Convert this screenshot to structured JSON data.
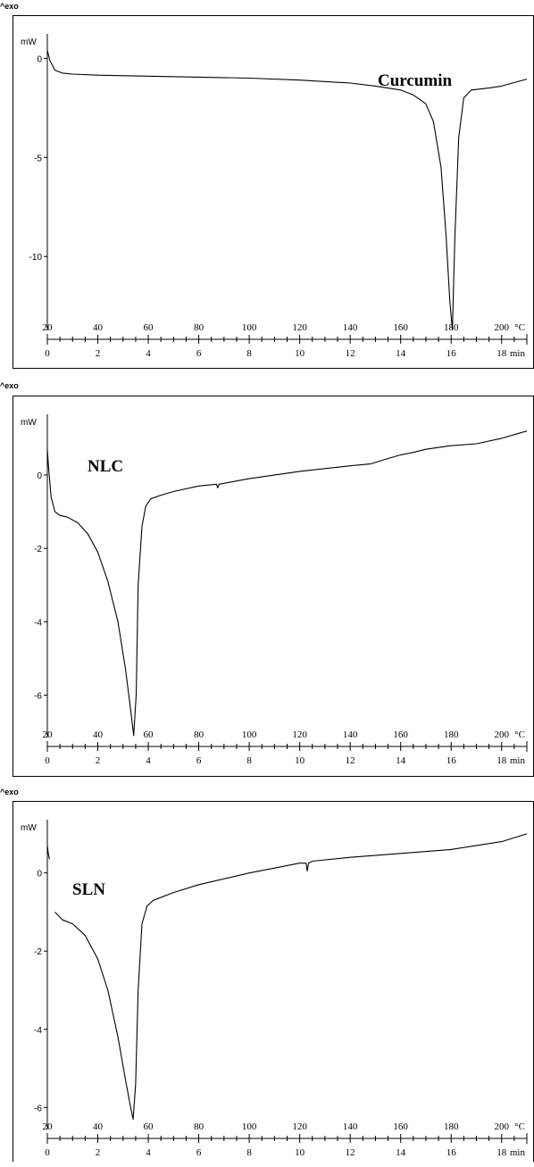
{
  "exo_label": "^exo",
  "chart_data": [
    {
      "type": "line",
      "title": "Curcumin",
      "ylabel": "mW",
      "temp_unit": "°C",
      "time_unit": "min",
      "yticks": [
        0,
        -5,
        -10
      ],
      "ylim": [
        -14,
        1.5
      ],
      "temp_ticks": [
        20,
        40,
        60,
        80,
        100,
        120,
        140,
        160,
        180,
        200
      ],
      "time_ticks": [
        0,
        2,
        4,
        6,
        8,
        10,
        12,
        14,
        16,
        18
      ],
      "xlim_min": [
        0,
        19
      ],
      "series": [
        {
          "x": [
            0,
            0.1,
            0.3,
            0.6,
            1,
            2,
            4,
            6,
            8,
            10,
            12,
            13,
            14,
            14.5,
            15,
            15.3,
            15.6,
            15.8,
            15.95,
            16.05,
            16.15,
            16.3,
            16.5,
            16.8,
            17.5,
            18,
            19
          ],
          "y": [
            0.4,
            -0.1,
            -0.6,
            -0.75,
            -0.8,
            -0.85,
            -0.9,
            -0.95,
            -1.0,
            -1.1,
            -1.25,
            -1.4,
            -1.6,
            -1.85,
            -2.3,
            -3.2,
            -5.5,
            -9.0,
            -12.3,
            -13.7,
            -9.0,
            -4.0,
            -2.0,
            -1.6,
            -1.5,
            -1.4,
            -1.05
          ]
        }
      ]
    },
    {
      "type": "line",
      "title": "NLC",
      "ylabel": "mW",
      "temp_unit": "°C",
      "time_unit": "min",
      "yticks": [
        0,
        -2,
        -4,
        -6
      ],
      "ylim": [
        -7.3,
        1.8
      ],
      "temp_ticks": [
        20,
        40,
        60,
        80,
        100,
        120,
        140,
        160,
        180,
        200
      ],
      "time_ticks": [
        0,
        2,
        4,
        6,
        8,
        10,
        12,
        14,
        16,
        18
      ],
      "xlim_min": [
        0,
        19
      ],
      "series": [
        {
          "x": [
            0,
            0.05,
            0.15,
            0.3,
            0.5,
            0.8,
            1.2,
            1.6,
            2.0,
            2.4,
            2.8,
            3.1,
            3.3,
            3.42,
            3.52,
            3.6,
            3.75,
            3.9,
            4.1,
            4.5,
            5,
            6,
            6.7,
            6.75,
            6.8,
            8,
            10,
            12,
            12.8,
            13.5,
            14,
            14.4,
            15,
            16,
            17,
            18,
            19
          ],
          "y": [
            0.7,
            0.2,
            -0.6,
            -1.0,
            -1.1,
            -1.15,
            -1.3,
            -1.6,
            -2.1,
            -2.9,
            -4.0,
            -5.3,
            -6.4,
            -7.1,
            -6.0,
            -3.0,
            -1.4,
            -0.85,
            -0.65,
            -0.55,
            -0.45,
            -0.3,
            -0.25,
            -0.35,
            -0.25,
            -0.1,
            0.1,
            0.25,
            0.3,
            0.45,
            0.55,
            0.6,
            0.7,
            0.8,
            0.85,
            1.0,
            1.2
          ]
        }
      ]
    },
    {
      "type": "line",
      "title": "SLN",
      "ylabel": "mW",
      "temp_unit": "°C",
      "time_unit": "min",
      "yticks": [
        0,
        -2,
        -4,
        -6
      ],
      "ylim": [
        -6.7,
        1.5
      ],
      "temp_ticks": [
        20,
        40,
        60,
        80,
        100,
        120,
        140,
        160,
        180,
        200
      ],
      "time_ticks": [
        0,
        2,
        4,
        6,
        8,
        10,
        12,
        14,
        16,
        18
      ],
      "xlim_min": [
        0,
        19
      ],
      "series": [
        {
          "x": [
            0,
            0.04,
            0.08
          ],
          "y": [
            0.7,
            0.5,
            0.35
          ]
        },
        {
          "x": [
            0.3,
            0.6,
            1.0,
            1.5,
            2.0,
            2.4,
            2.8,
            3.1,
            3.3,
            3.4,
            3.5,
            3.6,
            3.75,
            3.95,
            4.2,
            5,
            6,
            8,
            10,
            10.25,
            10.3,
            10.35,
            10.5,
            12,
            14,
            16,
            18,
            19
          ],
          "y": [
            -1.0,
            -1.2,
            -1.3,
            -1.6,
            -2.2,
            -3.0,
            -4.2,
            -5.3,
            -6.0,
            -6.3,
            -5.4,
            -3.0,
            -1.3,
            -0.85,
            -0.7,
            -0.5,
            -0.3,
            0.0,
            0.25,
            0.25,
            0.05,
            0.25,
            0.3,
            0.4,
            0.5,
            0.6,
            0.8,
            1.0
          ]
        }
      ]
    }
  ]
}
